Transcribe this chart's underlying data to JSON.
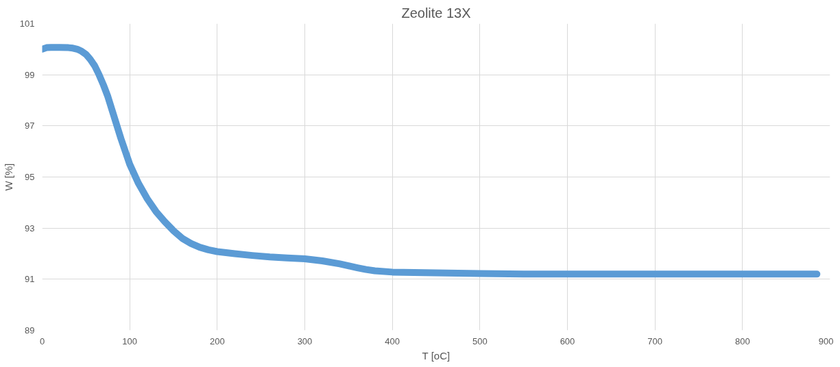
{
  "chart_data": {
    "type": "line",
    "title": "Zeolite 13X",
    "xlabel": "T [oC]",
    "ylabel": "W [%]",
    "xlim": [
      0,
      900
    ],
    "xticks": [
      0,
      100,
      200,
      300,
      400,
      500,
      600,
      700,
      800,
      900
    ],
    "ylim": [
      89,
      101
    ],
    "yticks": [
      89,
      91,
      93,
      95,
      97,
      99,
      101
    ],
    "grid": true,
    "line_style": "solid",
    "series": [
      {
        "color": "#5b9bd5",
        "x": [
          0,
          5,
          10,
          20,
          30,
          35,
          40,
          45,
          50,
          55,
          60,
          65,
          70,
          75,
          80,
          85,
          90,
          95,
          100,
          110,
          120,
          130,
          140,
          150,
          160,
          170,
          180,
          190,
          200,
          220,
          240,
          260,
          280,
          300,
          320,
          340,
          360,
          370,
          380,
          400,
          450,
          500,
          550,
          600,
          650,
          700,
          750,
          800,
          850,
          885
        ],
        "values": [
          100.0,
          100.06,
          100.07,
          100.07,
          100.06,
          100.04,
          100.0,
          99.92,
          99.8,
          99.6,
          99.35,
          99.0,
          98.6,
          98.15,
          97.6,
          97.05,
          96.5,
          96.0,
          95.5,
          94.75,
          94.15,
          93.65,
          93.25,
          92.9,
          92.6,
          92.4,
          92.25,
          92.15,
          92.08,
          92.0,
          91.93,
          91.87,
          91.83,
          91.8,
          91.72,
          91.6,
          91.45,
          91.38,
          91.33,
          91.28,
          91.25,
          91.22,
          91.2,
          91.2,
          91.2,
          91.2,
          91.2,
          91.2,
          91.2,
          91.2
        ]
      }
    ]
  }
}
